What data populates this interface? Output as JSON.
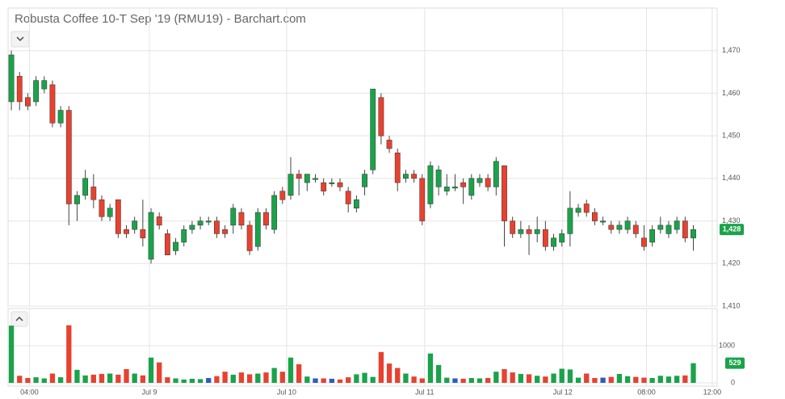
{
  "chart_data": {
    "type": "candlestick",
    "title": "Robusta Coffee 10-T Sep '19 (RMU19) - Barchart.com",
    "open": [
      1458,
      1464,
      1459,
      1458,
      1461,
      1462,
      1453,
      1456,
      1434,
      1436,
      1438,
      1435,
      1431,
      1435,
      1428,
      1428,
      1428,
      1421,
      1431,
      1427,
      1423,
      1425,
      1428,
      1429,
      1430,
      1430,
      1428,
      1429,
      1432,
      1429,
      1424,
      1432,
      1428,
      1437,
      1436,
      1441,
      1439,
      1440,
      1439,
      1439,
      1439,
      1437,
      1433,
      1438,
      1442,
      1459,
      1449,
      1446,
      1440,
      1441,
      1440,
      1434,
      1438,
      1437,
      1438,
      1439,
      1436,
      1439,
      1440,
      1438,
      1443,
      1430,
      1427,
      1428,
      1427,
      1428,
      1424,
      1425,
      1427,
      1432,
      1434,
      1432,
      1430,
      1429,
      1428,
      1428,
      1429,
      1426,
      1425,
      1428,
      1427,
      1428,
      1430,
      1426
    ],
    "high": [
      1470,
      1465,
      1460,
      1464,
      1464,
      1463,
      1457,
      1457,
      1437,
      1442,
      1441,
      1436,
      1434,
      1435,
      1429,
      1431,
      1435,
      1433,
      1432,
      1428,
      1426,
      1429,
      1430,
      1431,
      1431,
      1431,
      1429,
      1434,
      1433,
      1430,
      1433,
      1433,
      1437,
      1438,
      1445,
      1442,
      1441,
      1441,
      1440,
      1440,
      1440,
      1438,
      1436,
      1442,
      1461,
      1460,
      1450,
      1447,
      1442,
      1442,
      1441,
      1444,
      1443,
      1441,
      1441,
      1440,
      1441,
      1441,
      1441,
      1445,
      1443,
      1431,
      1430,
      1429,
      1431,
      1430,
      1427,
      1428,
      1437,
      1434,
      1435,
      1433,
      1431,
      1430,
      1430,
      1431,
      1430,
      1429,
      1429,
      1431,
      1430,
      1431,
      1431,
      1429
    ],
    "low": [
      1456,
      1456,
      1456,
      1457,
      1460,
      1452,
      1452,
      1429,
      1430,
      1435,
      1433,
      1430,
      1430,
      1426,
      1426,
      1427,
      1424,
      1420,
      1428,
      1422,
      1422,
      1424,
      1427,
      1428,
      1429,
      1426,
      1426,
      1427,
      1428,
      1422,
      1423,
      1428,
      1427,
      1434,
      1435,
      1436,
      1437,
      1439,
      1436,
      1438,
      1437,
      1432,
      1432,
      1436,
      1441,
      1448,
      1446,
      1437,
      1439,
      1439,
      1429,
      1433,
      1436,
      1436,
      1437,
      1434,
      1435,
      1438,
      1437,
      1436,
      1424,
      1426,
      1426,
      1422,
      1425,
      1423,
      1423,
      1424,
      1424,
      1431,
      1431,
      1429,
      1429,
      1427,
      1427,
      1427,
      1426,
      1423,
      1424,
      1427,
      1426,
      1427,
      1425,
      1423
    ],
    "close": [
      1469,
      1458,
      1457,
      1463,
      1463,
      1453,
      1456,
      1434,
      1436,
      1440,
      1435,
      1431,
      1433,
      1427,
      1427,
      1430,
      1426,
      1432,
      1429,
      1422,
      1425,
      1428,
      1429,
      1430,
      1430,
      1427,
      1427,
      1433,
      1429,
      1423,
      1432,
      1429,
      1436,
      1435,
      1441,
      1440,
      1441,
      1440,
      1437,
      1439,
      1438,
      1434,
      1435,
      1441,
      1461,
      1450,
      1447,
      1439,
      1441,
      1440,
      1430,
      1443,
      1442,
      1438,
      1438,
      1438,
      1440,
      1440,
      1438,
      1444,
      1430,
      1427,
      1428,
      1427,
      1428,
      1424,
      1426,
      1427,
      1433,
      1433,
      1432,
      1430,
      1430,
      1428,
      1429,
      1430,
      1427,
      1424,
      1428,
      1429,
      1429,
      1430,
      1426,
      1428
    ],
    "volume": [
      1540,
      190,
      130,
      150,
      120,
      250,
      150,
      1550,
      350,
      200,
      220,
      240,
      250,
      220,
      370,
      250,
      200,
      680,
      550,
      150,
      120,
      90,
      110,
      100,
      130,
      180,
      300,
      220,
      280,
      230,
      250,
      280,
      400,
      300,
      680,
      500,
      170,
      120,
      120,
      110,
      90,
      150,
      230,
      270,
      160,
      830,
      520,
      400,
      250,
      170,
      120,
      790,
      480,
      140,
      120,
      110,
      130,
      120,
      130,
      300,
      370,
      280,
      240,
      230,
      190,
      170,
      250,
      380,
      360,
      140,
      250,
      130,
      140,
      160,
      240,
      180,
      160,
      140,
      130,
      190,
      170,
      190,
      200,
      529
    ],
    "up_color": "#1aa34a",
    "down_color": "#e8412f",
    "unchanged_color": "#2d5bc4",
    "last": {
      "value": 1428,
      "label": "1,428"
    },
    "xlim": [
      -0.4,
      85.9
    ],
    "xticks": [
      {
        "value": 2.2,
        "label": "04:00"
      },
      {
        "value": 16.8,
        "label": "Jul 9"
      },
      {
        "value": 33.5,
        "label": "Jul 10"
      },
      {
        "value": 50.3,
        "label": "Jul 11"
      },
      {
        "value": 67.1,
        "label": "Jul 12"
      },
      {
        "value": 77.3,
        "label": "08:00"
      },
      {
        "value": 85.3,
        "label": "12:00"
      }
    ],
    "ylim": [
      1410,
      1480
    ],
    "yticks": [
      {
        "value": 1410,
        "label": "1,410"
      },
      {
        "value": 1420,
        "label": "1,420"
      },
      {
        "value": 1430,
        "label": "1,430"
      },
      {
        "value": 1440,
        "label": "1,440"
      },
      {
        "value": 1450,
        "label": "1,450"
      },
      {
        "value": 1460,
        "label": "1,460"
      },
      {
        "value": 1470,
        "label": "1,470"
      }
    ],
    "y2lim": [
      0,
      2000
    ],
    "y2ticks": [
      0,
      1000
    ],
    "grid": true
  }
}
